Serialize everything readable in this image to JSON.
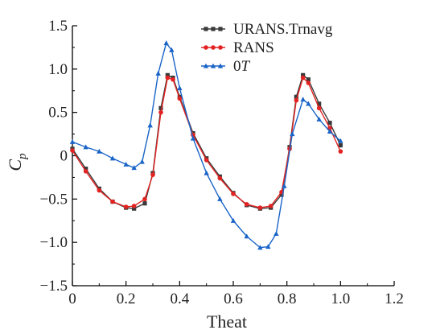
{
  "chart_data": {
    "type": "line",
    "xlabel": "Theat",
    "ylabel_main": "C",
    "ylabel_sub": "p",
    "xlim": [
      0,
      1.2
    ],
    "ylim": [
      -1.5,
      1.5
    ],
    "x_ticks": [
      "0",
      "0.2",
      "0.4",
      "0.6",
      "0.8",
      "1.0",
      "1.2"
    ],
    "y_ticks": [
      "1.5",
      "1.0",
      "0.5",
      "0",
      "−0.5",
      "−1.0",
      "−1.5"
    ],
    "grid": false,
    "legend_position": "top-right",
    "series": [
      {
        "name": "URANS.Trnavg",
        "color": "#3a3a3a",
        "marker": "square",
        "points": [
          [
            0,
            0.08
          ],
          [
            0.05,
            -0.15
          ],
          [
            0.1,
            -0.38
          ],
          [
            0.15,
            -0.53
          ],
          [
            0.2,
            -0.6
          ],
          [
            0.23,
            -0.61
          ],
          [
            0.27,
            -0.55
          ],
          [
            0.3,
            -0.2
          ],
          [
            0.33,
            0.55
          ],
          [
            0.355,
            0.93
          ],
          [
            0.375,
            0.9
          ],
          [
            0.4,
            0.68
          ],
          [
            0.45,
            0.26
          ],
          [
            0.5,
            -0.03
          ],
          [
            0.55,
            -0.24
          ],
          [
            0.6,
            -0.43
          ],
          [
            0.65,
            -0.57
          ],
          [
            0.7,
            -0.61
          ],
          [
            0.74,
            -0.6
          ],
          [
            0.78,
            -0.45
          ],
          [
            0.81,
            0.1
          ],
          [
            0.835,
            0.68
          ],
          [
            0.86,
            0.93
          ],
          [
            0.88,
            0.88
          ],
          [
            0.92,
            0.6
          ],
          [
            0.96,
            0.38
          ],
          [
            1.0,
            0.12
          ]
        ]
      },
      {
        "name": "RANS",
        "color": "#e32222",
        "marker": "circle",
        "points": [
          [
            0,
            0.06
          ],
          [
            0.05,
            -0.18
          ],
          [
            0.1,
            -0.4
          ],
          [
            0.15,
            -0.53
          ],
          [
            0.2,
            -0.59
          ],
          [
            0.23,
            -0.58
          ],
          [
            0.27,
            -0.5
          ],
          [
            0.3,
            -0.22
          ],
          [
            0.33,
            0.5
          ],
          [
            0.355,
            0.9
          ],
          [
            0.375,
            0.88
          ],
          [
            0.4,
            0.66
          ],
          [
            0.45,
            0.24
          ],
          [
            0.5,
            -0.05
          ],
          [
            0.55,
            -0.26
          ],
          [
            0.6,
            -0.44
          ],
          [
            0.65,
            -0.56
          ],
          [
            0.7,
            -0.6
          ],
          [
            0.74,
            -0.58
          ],
          [
            0.78,
            -0.42
          ],
          [
            0.81,
            0.08
          ],
          [
            0.835,
            0.64
          ],
          [
            0.86,
            0.9
          ],
          [
            0.88,
            0.84
          ],
          [
            0.92,
            0.55
          ],
          [
            0.96,
            0.32
          ],
          [
            1.0,
            0.05
          ]
        ]
      },
      {
        "name": "0T",
        "color": "#1a64c8",
        "marker": "triangle",
        "points": [
          [
            0,
            0.16
          ],
          [
            0.05,
            0.1
          ],
          [
            0.1,
            0.05
          ],
          [
            0.15,
            -0.03
          ],
          [
            0.2,
            -0.1
          ],
          [
            0.23,
            -0.14
          ],
          [
            0.26,
            -0.07
          ],
          [
            0.29,
            0.35
          ],
          [
            0.32,
            0.95
          ],
          [
            0.35,
            1.3
          ],
          [
            0.37,
            1.22
          ],
          [
            0.4,
            0.78
          ],
          [
            0.45,
            0.2
          ],
          [
            0.5,
            -0.2
          ],
          [
            0.55,
            -0.5
          ],
          [
            0.6,
            -0.75
          ],
          [
            0.65,
            -0.93
          ],
          [
            0.7,
            -1.06
          ],
          [
            0.73,
            -1.05
          ],
          [
            0.76,
            -0.9
          ],
          [
            0.79,
            -0.35
          ],
          [
            0.82,
            0.25
          ],
          [
            0.86,
            0.65
          ],
          [
            0.88,
            0.6
          ],
          [
            0.92,
            0.42
          ],
          [
            0.96,
            0.28
          ],
          [
            1.0,
            0.17
          ]
        ]
      }
    ]
  }
}
